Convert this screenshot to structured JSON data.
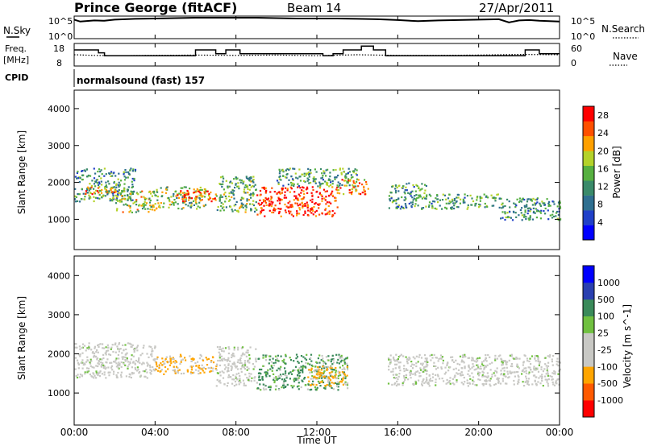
{
  "header": {
    "station": "Prince George (fitACF)",
    "beam": "Beam 14",
    "date": "27/Apr/2011"
  },
  "summary_panels": {
    "noise": {
      "left_label": "N.Sky",
      "right_label": "N.Search",
      "left_ticks": [
        "10^5",
        "10^0"
      ],
      "right_ticks": [
        "10^5",
        "10^0"
      ]
    },
    "freq": {
      "left_label_line1": "Freq.",
      "left_label_line2": "[MHz]",
      "right_label": "Nave",
      "left_ticks": [
        "18",
        "8"
      ],
      "right_ticks": [
        "60",
        "0"
      ]
    },
    "cpid": {
      "label": "CPID",
      "value": "normalsound (fast) 157"
    }
  },
  "colors": {
    "power_scale": [
      "#0000ff",
      "#2040c8",
      "#2f6f90",
      "#3a8a6a",
      "#56b040",
      "#b4d22a",
      "#ffa000",
      "#ff5000",
      "#ff0000"
    ],
    "velocity_scale": [
      "#ff0000",
      "#ff5a00",
      "#ffa500",
      "#c8c8c4",
      "#c8c8c4",
      "#70c040",
      "#3a8a5a",
      "#2a40b0",
      "#0000ff"
    ],
    "ground_scatter": "#c8c8c4"
  },
  "chart_data": [
    {
      "type": "line",
      "name": "noise",
      "series": [
        {
          "name": "N.Sky",
          "x": [
            0,
            0.3,
            1,
            1.5,
            2,
            3,
            4,
            5,
            6,
            7,
            8,
            9,
            10,
            11,
            12,
            13,
            14,
            15,
            16,
            17,
            18,
            19,
            20,
            21,
            21.5,
            22,
            22.5,
            23,
            24
          ],
          "y": [
            4.5,
            4.0,
            4.3,
            4.2,
            4.5,
            4.7,
            4.8,
            4.9,
            5.0,
            5.0,
            5.0,
            5.0,
            4.9,
            4.8,
            4.8,
            4.8,
            4.7,
            4.6,
            4.4,
            4.1,
            4.3,
            4.4,
            4.5,
            4.6,
            3.8,
            4.3,
            4.4,
            4.2,
            4.0
          ]
        }
      ],
      "xlim": [
        0,
        24
      ],
      "ylim": [
        0,
        5
      ],
      "yscale": "log10"
    },
    {
      "type": "line",
      "name": "freq_nave",
      "series": [
        {
          "name": "Freq.",
          "unit": "MHz",
          "x": [
            0,
            0.8,
            1.2,
            1.5,
            5.2,
            6.0,
            7.0,
            7.5,
            8.2,
            12.3,
            12.8,
            13.3,
            14.2,
            14.8,
            15.4,
            21.4,
            22.3,
            23.0,
            24
          ],
          "y": [
            15.5,
            15.5,
            14,
            12.5,
            12.5,
            15.5,
            13.5,
            15.5,
            13.5,
            12.5,
            13.5,
            15.5,
            17.5,
            15.5,
            12.5,
            12.5,
            15.5,
            13.5,
            13.5
          ]
        },
        {
          "name": "Nave",
          "x": [
            0,
            1,
            2,
            4,
            6,
            8,
            10,
            12,
            14,
            16,
            18,
            20,
            22,
            24
          ],
          "y": [
            30,
            28,
            27,
            28,
            29,
            28,
            29,
            27,
            30,
            28,
            28,
            29,
            31,
            30
          ]
        }
      ],
      "xlim": [
        0,
        24
      ],
      "ylim_freq": [
        8,
        18
      ],
      "ylim_nave": [
        0,
        60
      ]
    },
    {
      "type": "heatmap",
      "name": "power",
      "xlabel": "",
      "ylabel": "Slant Range [km]",
      "xlim": [
        0,
        24
      ],
      "ylim": [
        180,
        4500
      ],
      "yticks": [
        1000,
        2000,
        3000,
        4000
      ],
      "colorbar_label": "Power [dB]",
      "colorbar_ticks": [
        4,
        8,
        12,
        16,
        20,
        24,
        28
      ],
      "colorbar_range": [
        0,
        30
      ],
      "bands": [
        {
          "x0": 0.0,
          "x1": 3.0,
          "y0": 1500,
          "y1": 2400,
          "value": 12
        },
        {
          "x0": 0.5,
          "x1": 2.0,
          "y0": 1700,
          "y1": 1900,
          "value": 22
        },
        {
          "x0": 2.0,
          "x1": 4.0,
          "y0": 1200,
          "y1": 1800,
          "value": 18
        },
        {
          "x0": 4.0,
          "x1": 6.5,
          "y0": 1300,
          "y1": 1900,
          "value": 16
        },
        {
          "x0": 5.0,
          "x1": 7.0,
          "y0": 1500,
          "y1": 1800,
          "value": 26
        },
        {
          "x0": 7.0,
          "x1": 9.0,
          "y0": 1200,
          "y1": 2200,
          "value": 14
        },
        {
          "x0": 9.0,
          "x1": 13.0,
          "y0": 1100,
          "y1": 1900,
          "value": 27
        },
        {
          "x0": 10.0,
          "x1": 14.0,
          "y0": 1900,
          "y1": 2400,
          "value": 13
        },
        {
          "x0": 13.0,
          "x1": 14.5,
          "y0": 1700,
          "y1": 2100,
          "value": 22
        },
        {
          "x0": 15.5,
          "x1": 17.5,
          "y0": 1300,
          "y1": 2000,
          "value": 12
        },
        {
          "x0": 17.5,
          "x1": 21.0,
          "y0": 1300,
          "y1": 1700,
          "value": 13
        },
        {
          "x0": 21.0,
          "x1": 24.0,
          "y0": 1000,
          "y1": 1600,
          "value": 11
        }
      ]
    },
    {
      "type": "heatmap",
      "name": "velocity",
      "xlabel": "Time UT",
      "ylabel": "Slant Range [km]",
      "xlim": [
        0,
        24
      ],
      "xticks": [
        "00:00",
        "04:00",
        "08:00",
        "12:00",
        "16:00",
        "20:00",
        "00:00"
      ],
      "ylim": [
        180,
        4500
      ],
      "yticks": [
        1000,
        2000,
        3000,
        4000
      ],
      "colorbar_label": "Velocity [m s^-1]",
      "colorbar_ticks": [
        "-1000",
        "-500",
        "-100",
        "-25",
        "25",
        "100",
        "500",
        "1000"
      ],
      "bands": [
        {
          "x0": 0.0,
          "x1": 4.0,
          "y0": 1400,
          "y1": 2300,
          "value": "ground"
        },
        {
          "x0": 4.0,
          "x1": 7.0,
          "y0": 1500,
          "y1": 2000,
          "value": -150
        },
        {
          "x0": 7.0,
          "x1": 9.0,
          "y0": 1200,
          "y1": 2200,
          "value": "ground"
        },
        {
          "x0": 9.0,
          "x1": 13.5,
          "y0": 1100,
          "y1": 2000,
          "value": 120
        },
        {
          "x0": 11.5,
          "x1": 13.5,
          "y0": 1200,
          "y1": 1700,
          "value": -200
        },
        {
          "x0": 15.5,
          "x1": 24.0,
          "y0": 1200,
          "y1": 2000,
          "value": "ground"
        }
      ]
    }
  ]
}
